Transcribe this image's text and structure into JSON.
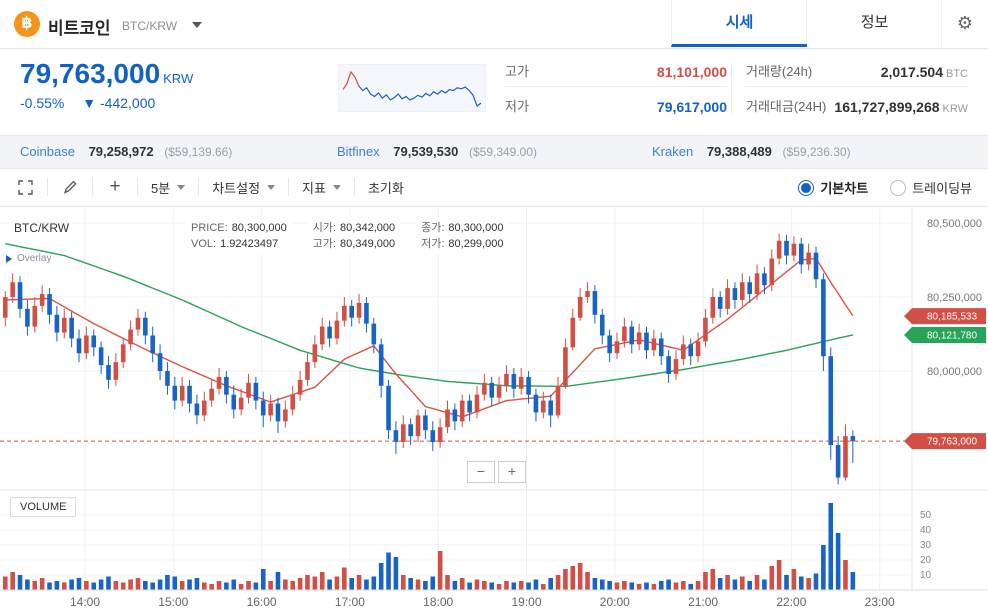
{
  "header": {
    "coin_symbol": "฿",
    "coin_name": "비트코인",
    "pair": "BTC/KRW",
    "tabs": [
      {
        "label": "시세",
        "active": true
      },
      {
        "label": "정보",
        "active": false
      }
    ],
    "gear_icon": "⚙"
  },
  "price_panel": {
    "price": "79,763,000",
    "currency": "KRW",
    "change_percent": "-0.55%",
    "change_arrow": "▼",
    "change_amount": "-442,000",
    "stats": {
      "high_label": "고가",
      "high_value": "81,101,000",
      "low_label": "저가",
      "low_value": "79,617,000",
      "volume_label": "거래량(24h)",
      "volume_value": "2,017.504",
      "volume_unit": "BTC",
      "turnover_label": "거래대금(24H)",
      "turnover_value": "161,727,899,268",
      "turnover_unit": "KRW"
    }
  },
  "exchange_bar": {
    "items": [
      {
        "name": "Coinbase",
        "price": "79,258,972",
        "usd": "($59,139.66)"
      },
      {
        "name": "Bitfinex",
        "price": "79,539,530",
        "usd": "($59,349.00)"
      },
      {
        "name": "Kraken",
        "price": "79,388,489",
        "usd": "($59,236.30)"
      }
    ]
  },
  "toolbar": {
    "interval": "5분",
    "chart_settings": "차트설정",
    "indicator": "지표",
    "reset": "초기화",
    "radio_basic": "기본차트",
    "radio_tradingview": "트레이딩뷰",
    "plus": "+"
  },
  "chart_overlay": {
    "symbol": "BTC/KRW",
    "overlay_label": "Overlay",
    "price_label": "PRICE:",
    "price": "80,300,000",
    "vol_label": "VOL:",
    "vol": "1.92423497",
    "open_label": "시가:",
    "open": "80,342,000",
    "high_label": "고가:",
    "high": "80,349,000",
    "close_label": "종가:",
    "close": "80,300,000",
    "low_label": "저가:",
    "low": "80,299,000"
  },
  "zoom": {
    "minus": "−",
    "plus": "+"
  },
  "volume_pane_label": "VOLUME",
  "colors": {
    "up": "#d24f45",
    "down": "#1763c6",
    "ma_green": "#27a35a",
    "ma_red": "#df5146",
    "badge_red": "#d24f45",
    "badge_green": "#27a35a",
    "accent_blue": "#1261c4",
    "grid": "#eef0f4"
  },
  "chart_data": {
    "type": "candlestick",
    "interval": "5m",
    "price_scale_note": "prices stored as KRW/1000",
    "y_gridlines_k": [
      80500,
      80250,
      80000
    ],
    "y_axis_labels": [
      "80,500,000",
      "80,250,000",
      "80,000,000"
    ],
    "badges": [
      {
        "text": "80,185,533",
        "color": "red",
        "price_k": 80185.533
      },
      {
        "text": "80,121,780",
        "color": "green",
        "price_k": 80121.78
      },
      {
        "text": "79,763,000",
        "color": "red",
        "price_k": 79763,
        "dashed_line": true
      }
    ],
    "x_labels": [
      "14:00",
      "15:00",
      "16:00",
      "17:00",
      "18:00",
      "19:00",
      "20:00",
      "21:00",
      "22:00",
      "23:00"
    ],
    "volume_axis": [
      50,
      40,
      30,
      20,
      10
    ],
    "candles": [
      [
        80180,
        80270,
        80150,
        80250,
        9
      ],
      [
        80250,
        80330,
        80230,
        80300,
        12
      ],
      [
        80300,
        80320,
        80180,
        80210,
        10
      ],
      [
        80210,
        80240,
        80120,
        80150,
        7
      ],
      [
        80150,
        80250,
        80130,
        80220,
        6
      ],
      [
        80220,
        80290,
        80200,
        80260,
        8
      ],
      [
        80260,
        80280,
        80160,
        80190,
        5
      ],
      [
        80190,
        80220,
        80100,
        80130,
        6
      ],
      [
        80130,
        80210,
        80110,
        80180,
        5
      ],
      [
        80180,
        80200,
        80080,
        80110,
        7
      ],
      [
        80110,
        80140,
        80030,
        80060,
        8
      ],
      [
        80060,
        80150,
        80040,
        80120,
        6
      ],
      [
        80120,
        80140,
        80050,
        80080,
        5
      ],
      [
        80080,
        80100,
        79990,
        80020,
        7
      ],
      [
        80020,
        80050,
        79940,
        79970,
        9
      ],
      [
        79970,
        80060,
        79950,
        80030,
        6
      ],
      [
        80030,
        80110,
        80010,
        80090,
        5
      ],
      [
        80090,
        80170,
        80070,
        80140,
        7
      ],
      [
        80140,
        80210,
        80120,
        80180,
        8
      ],
      [
        80180,
        80200,
        80090,
        80120,
        6
      ],
      [
        80120,
        80150,
        80030,
        80060,
        5
      ],
      [
        80060,
        80090,
        79970,
        80000,
        7
      ],
      [
        80000,
        80030,
        79920,
        79950,
        10
      ],
      [
        79950,
        79980,
        79870,
        79900,
        9
      ],
      [
        79900,
        79980,
        79880,
        79950,
        6
      ],
      [
        79950,
        79970,
        79860,
        79890,
        7
      ],
      [
        79890,
        79920,
        79820,
        79850,
        8
      ],
      [
        79850,
        79930,
        79830,
        79900,
        5
      ],
      [
        79900,
        79970,
        79880,
        79940,
        4
      ],
      [
        79940,
        80010,
        79920,
        79980,
        6
      ],
      [
        79980,
        80000,
        79890,
        79920,
        5
      ],
      [
        79920,
        79950,
        79840,
        79870,
        7
      ],
      [
        79870,
        79940,
        79850,
        79910,
        4
      ],
      [
        79910,
        79990,
        79890,
        79960,
        6
      ],
      [
        79960,
        79980,
        79870,
        79900,
        5
      ],
      [
        79900,
        79930,
        79810,
        79850,
        14
      ],
      [
        79850,
        79920,
        79830,
        79890,
        6
      ],
      [
        79890,
        79910,
        79790,
        79830,
        12
      ],
      [
        79830,
        79900,
        79810,
        79870,
        7
      ],
      [
        79870,
        79950,
        79850,
        79920,
        6
      ],
      [
        79920,
        80000,
        79900,
        79970,
        8
      ],
      [
        79970,
        80060,
        79950,
        80030,
        10
      ],
      [
        80030,
        80120,
        80010,
        80090,
        9
      ],
      [
        80090,
        80180,
        80070,
        80150,
        12
      ],
      [
        80150,
        80170,
        80080,
        80110,
        7
      ],
      [
        80110,
        80200,
        80090,
        80170,
        9
      ],
      [
        80170,
        80250,
        80150,
        80220,
        15
      ],
      [
        80220,
        80240,
        80150,
        80180,
        8
      ],
      [
        80180,
        80260,
        80160,
        80230,
        10
      ],
      [
        80230,
        80250,
        80130,
        80160,
        7
      ],
      [
        80160,
        80180,
        80060,
        80090,
        9
      ],
      [
        80090,
        80110,
        79910,
        79950,
        18
      ],
      [
        79950,
        79970,
        79770,
        79800,
        25
      ],
      [
        79800,
        79830,
        79720,
        79760,
        22
      ],
      [
        79760,
        79850,
        79740,
        79820,
        10
      ],
      [
        79820,
        79840,
        79750,
        79780,
        8
      ],
      [
        79780,
        79870,
        79760,
        79850,
        7
      ],
      [
        79850,
        79870,
        79770,
        79800,
        6
      ],
      [
        79800,
        79830,
        79730,
        79760,
        9
      ],
      [
        79760,
        79840,
        79740,
        79810,
        26
      ],
      [
        79810,
        79900,
        79790,
        79870,
        10
      ],
      [
        79870,
        79890,
        79800,
        79830,
        6
      ],
      [
        79830,
        79920,
        79810,
        79900,
        8
      ],
      [
        79900,
        79920,
        79830,
        79860,
        5
      ],
      [
        79860,
        79950,
        79840,
        79920,
        7
      ],
      [
        79920,
        79990,
        79900,
        79960,
        6
      ],
      [
        79960,
        79980,
        79880,
        79910,
        5
      ],
      [
        79910,
        79980,
        79890,
        79950,
        4
      ],
      [
        79950,
        80020,
        79930,
        79990,
        6
      ],
      [
        79990,
        80010,
        79910,
        79940,
        5
      ],
      [
        79940,
        80010,
        79920,
        79980,
        6
      ],
      [
        79980,
        80000,
        79890,
        79920,
        5
      ],
      [
        79920,
        79940,
        79830,
        79860,
        7
      ],
      [
        79860,
        79930,
        79840,
        79900,
        4
      ],
      [
        79900,
        79920,
        79810,
        79850,
        8
      ],
      [
        79850,
        79980,
        79840,
        79950,
        10
      ],
      [
        79950,
        80110,
        79940,
        80080,
        14
      ],
      [
        80080,
        80210,
        80070,
        80180,
        16
      ],
      [
        80180,
        80280,
        80170,
        80250,
        18
      ],
      [
        80250,
        80300,
        80230,
        80270,
        12
      ],
      [
        80270,
        80290,
        80160,
        80190,
        8
      ],
      [
        80190,
        80210,
        80090,
        80120,
        7
      ],
      [
        80120,
        80140,
        80030,
        80060,
        6
      ],
      [
        80060,
        80130,
        80040,
        80100,
        5
      ],
      [
        80100,
        80180,
        80080,
        80150,
        6
      ],
      [
        80150,
        80170,
        80060,
        80090,
        5
      ],
      [
        80090,
        80160,
        80070,
        80130,
        4
      ],
      [
        80130,
        80150,
        80040,
        80070,
        5
      ],
      [
        80070,
        80140,
        80050,
        80110,
        4
      ],
      [
        80110,
        80130,
        80020,
        80050,
        6
      ],
      [
        80050,
        80070,
        79960,
        79990,
        7
      ],
      [
        79990,
        80070,
        79970,
        80040,
        5
      ],
      [
        80040,
        80120,
        80020,
        80090,
        6
      ],
      [
        80090,
        80110,
        80020,
        80050,
        4
      ],
      [
        80050,
        80130,
        80030,
        80100,
        6
      ],
      [
        80100,
        80210,
        80080,
        80180,
        12
      ],
      [
        80180,
        80280,
        80160,
        80250,
        14
      ],
      [
        80250,
        80270,
        80180,
        80210,
        8
      ],
      [
        80210,
        80310,
        80190,
        80280,
        10
      ],
      [
        80280,
        80300,
        80210,
        80240,
        7
      ],
      [
        80240,
        80330,
        80220,
        80300,
        9
      ],
      [
        80300,
        80320,
        80230,
        80260,
        6
      ],
      [
        80260,
        80360,
        80240,
        80330,
        10
      ],
      [
        80330,
        80350,
        80260,
        80290,
        7
      ],
      [
        80290,
        80410,
        80270,
        80380,
        16
      ],
      [
        80380,
        80465,
        80360,
        80440,
        20
      ],
      [
        80440,
        80460,
        80360,
        80390,
        10
      ],
      [
        80390,
        80455,
        80370,
        80430,
        14
      ],
      [
        80430,
        80450,
        80330,
        80360,
        9
      ],
      [
        80360,
        80430,
        80340,
        80400,
        8
      ],
      [
        80400,
        80420,
        80280,
        80310,
        11
      ],
      [
        80310,
        80330,
        80000,
        80050,
        30
      ],
      [
        80050,
        80080,
        79700,
        79750,
        58
      ],
      [
        79750,
        79780,
        79617,
        79640,
        38
      ],
      [
        79640,
        79820,
        79630,
        79780,
        20
      ],
      [
        79780,
        79800,
        79690,
        79763,
        12
      ]
    ],
    "ma_green": [
      [
        0,
        80430
      ],
      [
        8,
        80390
      ],
      [
        16,
        80320
      ],
      [
        24,
        80240
      ],
      [
        32,
        80150
      ],
      [
        40,
        80070
      ],
      [
        48,
        80010
      ],
      [
        54,
        79985
      ],
      [
        60,
        79965
      ],
      [
        68,
        79950
      ],
      [
        76,
        79948
      ],
      [
        84,
        79975
      ],
      [
        92,
        80005
      ],
      [
        100,
        80040
      ],
      [
        106,
        80070
      ],
      [
        112,
        80105
      ],
      [
        115,
        80122
      ]
    ],
    "ma_red": [
      [
        0,
        80240
      ],
      [
        6,
        80245
      ],
      [
        12,
        80160
      ],
      [
        18,
        80085
      ],
      [
        24,
        80015
      ],
      [
        30,
        79950
      ],
      [
        36,
        79895
      ],
      [
        42,
        79945
      ],
      [
        46,
        80040
      ],
      [
        50,
        80085
      ],
      [
        53,
        79990
      ],
      [
        57,
        79880
      ],
      [
        62,
        79845
      ],
      [
        68,
        79900
      ],
      [
        74,
        79915
      ],
      [
        80,
        80075
      ],
      [
        86,
        80105
      ],
      [
        92,
        80070
      ],
      [
        98,
        80175
      ],
      [
        104,
        80295
      ],
      [
        108,
        80375
      ],
      [
        110,
        80380
      ],
      [
        112,
        80300
      ],
      [
        115,
        80186
      ]
    ],
    "sparkline": [
      80350,
      80600,
      81101,
      80900,
      80500,
      80300,
      80420,
      80150,
      80050,
      80200,
      79980,
      80120,
      79900,
      80000,
      80150,
      79950,
      80050,
      79900,
      79980,
      80100,
      80020,
      80180,
      80080,
      80250,
      80150,
      80300,
      80200,
      80350,
      80300,
      80420,
      80380,
      80450,
      80300,
      80100,
      79640,
      79763
    ]
  }
}
